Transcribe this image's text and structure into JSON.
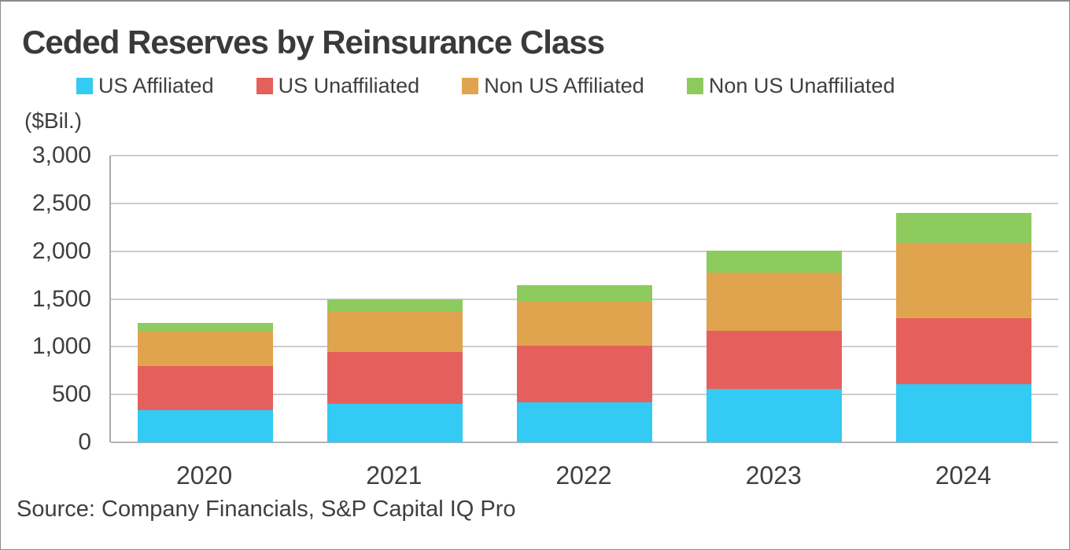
{
  "page": {
    "title": "Ceded Reserves by Reinsurance Class",
    "units_label": "($Bil.)",
    "source": "Source: Company Financials, S&P Capital IQ Pro"
  },
  "chart_data": {
    "type": "bar",
    "stacked": true,
    "title": "Ceded Reserves by Reinsurance Class",
    "ylabel": "($Bil.)",
    "xlabel": "",
    "ylim": [
      0,
      3000
    ],
    "ytick_step": 500,
    "ytick_labels": [
      "0",
      "500",
      "1,000",
      "1,500",
      "2,000",
      "2,500",
      "3,000"
    ],
    "grid": true,
    "legend_position": "top",
    "categories": [
      "2020",
      "2021",
      "2022",
      "2023",
      "2024"
    ],
    "series": [
      {
        "name": "US Affiliated",
        "color": "#33CAF4",
        "values": [
          340,
          400,
          420,
          555,
          610
        ]
      },
      {
        "name": "US Unaffiliated",
        "color": "#E5605C",
        "values": [
          460,
          545,
          590,
          610,
          690
        ]
      },
      {
        "name": "Non US Affiliated",
        "color": "#E0A44E",
        "values": [
          360,
          420,
          460,
          610,
          785
        ]
      },
      {
        "name": "Non US Unaffiliated",
        "color": "#8DCB5F",
        "values": [
          90,
          135,
          175,
          235,
          315
        ]
      }
    ],
    "totals": [
      1250,
      1500,
      1645,
      2010,
      2400
    ]
  }
}
